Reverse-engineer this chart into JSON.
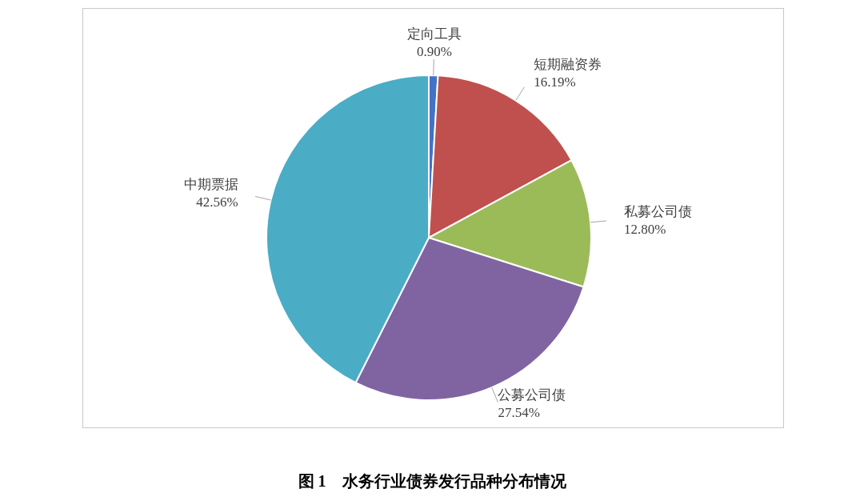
{
  "chart_data": {
    "type": "pie",
    "title": "图 1　水务行业债券发行品种分布情况",
    "categories": [
      "定向工具",
      "短期融资券",
      "私募公司债",
      "公募公司债",
      "中期票据"
    ],
    "values": [
      0.9,
      16.19,
      12.8,
      27.54,
      42.56
    ],
    "value_labels": [
      "0.90%",
      "16.19%",
      "12.80%",
      "27.54%",
      "42.56%"
    ],
    "colors": [
      "#4472c4",
      "#c0504d",
      "#9bbb59",
      "#8064a2",
      "#4bacc6"
    ],
    "legend": false
  }
}
